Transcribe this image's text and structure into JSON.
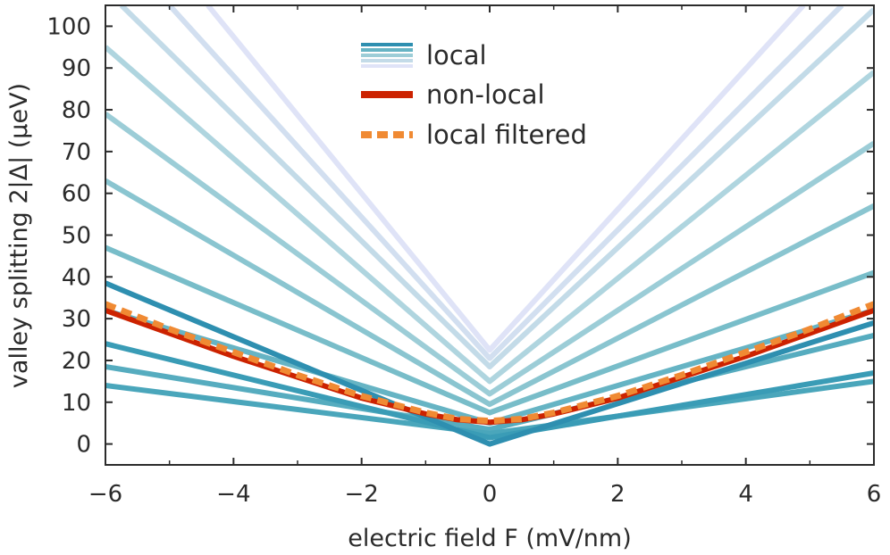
{
  "chart_data": {
    "type": "line",
    "xlabel": "electric field F (mV/nm)",
    "ylabel": "valley splitting 2|Δ| (μeV)",
    "xlim": [
      -6,
      6
    ],
    "ylim": [
      -5,
      105
    ],
    "xticks": [
      -6,
      -4,
      -2,
      0,
      2,
      4,
      6
    ],
    "xtick_labels": [
      "−6",
      "−4",
      "−2",
      "0",
      "2",
      "4",
      "6"
    ],
    "yticks": [
      0,
      10,
      20,
      30,
      40,
      50,
      60,
      70,
      80,
      90,
      100
    ],
    "ytick_labels": [
      "0",
      "10",
      "20",
      "30",
      "40",
      "50",
      "60",
      "70",
      "80",
      "90",
      "100"
    ],
    "grid": false,
    "legend": {
      "position": "top-center",
      "entries": [
        "local",
        "non-local",
        "local filtered"
      ]
    },
    "colors": {
      "local_dark": "#2e8fb0",
      "local_light": "#dfe3f7",
      "non_local": "#cc2200",
      "local_filtered": "#f08a33",
      "axis": "#2b2b2b"
    },
    "series": [
      {
        "group": "local",
        "color": "#2e8fb0",
        "x": [
          -6,
          0,
          6
        ],
        "y": [
          38.5,
          0,
          29
        ]
      },
      {
        "group": "local",
        "color": "#3a9cb6",
        "x": [
          -6,
          0,
          6
        ],
        "y": [
          24,
          1.5,
          17
        ]
      },
      {
        "group": "local",
        "color": "#4aa6bb",
        "x": [
          -6,
          0,
          6
        ],
        "y": [
          14,
          2.5,
          15
        ]
      },
      {
        "group": "local",
        "color": "#56acbf",
        "x": [
          -6,
          0,
          6
        ],
        "y": [
          18.5,
          3.5,
          26
        ]
      },
      {
        "group": "local",
        "color": "#66b4c4",
        "x": [
          -6,
          0,
          6
        ],
        "y": [
          32,
          5,
          32
        ]
      },
      {
        "group": "local",
        "color": "#78bdc9",
        "x": [
          -6,
          0,
          6
        ],
        "y": [
          47,
          7.5,
          41
        ]
      },
      {
        "group": "local",
        "color": "#8ac5d0",
        "x": [
          -6,
          0,
          6
        ],
        "y": [
          63,
          9.5,
          57
        ]
      },
      {
        "group": "local",
        "color": "#9ccdd7",
        "x": [
          -6,
          0,
          6
        ],
        "y": [
          79,
          12,
          72
        ]
      },
      {
        "group": "local",
        "color": "#afd5df",
        "x": [
          -6,
          0,
          6
        ],
        "y": [
          95,
          15,
          89
        ]
      },
      {
        "group": "local",
        "color": "#c3dbe8",
        "x": [
          -5.75,
          0,
          6
        ],
        "y": [
          105,
          18.5,
          104
        ]
      },
      {
        "group": "local",
        "color": "#d2dff0",
        "x": [
          -5.0,
          0,
          5.5
        ],
        "y": [
          105,
          20.5,
          105
        ]
      },
      {
        "group": "local",
        "color": "#dfe3f7",
        "x": [
          -4.4,
          0,
          4.9
        ],
        "y": [
          105,
          22.5,
          105
        ]
      },
      {
        "name": "non-local",
        "color": "#cc2200",
        "x": [
          -6,
          -5,
          -4,
          -3,
          -2,
          -1,
          -0.5,
          0,
          0.5,
          1,
          2,
          3,
          4,
          5,
          6
        ],
        "y": [
          32,
          26.5,
          21,
          16,
          11,
          7.2,
          5.8,
          5.2,
          5.8,
          7.2,
          11,
          16,
          21,
          26.5,
          32
        ]
      },
      {
        "name": "local filtered",
        "color": "#f08a33",
        "x": [
          -6,
          -5,
          -4,
          -3,
          -2,
          -1,
          -0.5,
          0,
          0.5,
          1,
          2,
          3,
          4,
          5,
          6
        ],
        "y": [
          33.5,
          27.5,
          22,
          16.5,
          11.5,
          7.5,
          6,
          5.5,
          6,
          7.5,
          11.5,
          16.5,
          22,
          27.5,
          33.5
        ]
      }
    ]
  }
}
